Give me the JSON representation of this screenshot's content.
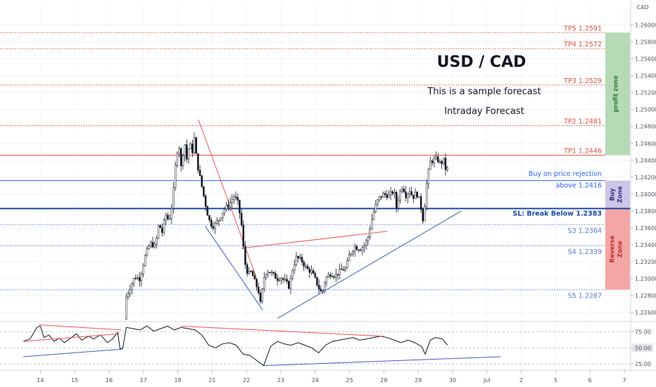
{
  "chart_data": {
    "type": "candlestick",
    "symbol": "USD / CAD",
    "subtitle": "This is a sample forecast",
    "caption": "Intraday Forecast",
    "price_axis": {
      "unit": "CAD",
      "ticks": [
        "1.26200",
        "1.26000",
        "1.25800",
        "1.25600",
        "1.25400",
        "1.25200",
        "1.25000",
        "1.24800",
        "1.24600",
        "1.24400",
        "1.24200",
        "1.24000",
        "1.23800",
        "1.23600",
        "1.23400",
        "1.23200",
        "1.23000",
        "1.22800",
        "1.22600"
      ],
      "range": [
        1.2251,
        1.2627
      ]
    },
    "time_axis": {
      "ticks": [
        "14",
        "15",
        "16",
        "17",
        "18",
        "21",
        "22",
        "23",
        "24",
        "25",
        "28",
        "29",
        "30",
        "Jul",
        "2",
        "5",
        "6",
        "7"
      ],
      "tick_positions": [
        0.5,
        1.5,
        2.5,
        3.5,
        4.5,
        5.5,
        6.5,
        7.5,
        8.5,
        9.5,
        10.5,
        11.5,
        12.5,
        13.5,
        14.5,
        15.5,
        16.5,
        17.5
      ],
      "data_end": 14.75
    },
    "levels": [
      {
        "label": "TP5 1.2591",
        "value": 1.2591,
        "color": "#e0503c",
        "style": "dotted"
      },
      {
        "label": "TP4 1.2572",
        "value": 1.2572,
        "color": "#e0503c",
        "style": "dotted"
      },
      {
        "label": "TP3 1.2529",
        "value": 1.2529,
        "color": "#e0503c",
        "style": "dotted"
      },
      {
        "label": "TP2 1.2481",
        "value": 1.2481,
        "color": "#e0503c",
        "style": "dotted"
      },
      {
        "label": "TP1 1.2446",
        "value": 1.2446,
        "color": "#e0503c",
        "style": "solid"
      },
      {
        "label": "above 1.2416",
        "value": 1.2416,
        "color": "#2962ff",
        "style": "solid"
      },
      {
        "label": "SL: Break Below 1.2383",
        "value": 1.2383,
        "color": "#1848a8",
        "style": "thick"
      },
      {
        "label": "S3 1.2364",
        "value": 1.2364,
        "color": "#5a7bd6",
        "style": "dotted"
      },
      {
        "label": "S4 1.2339",
        "value": 1.2339,
        "color": "#5a7bd6",
        "style": "dotted"
      },
      {
        "label": "S5 1.2287",
        "value": 1.2287,
        "color": "#5a7bd6",
        "style": "dotted"
      }
    ],
    "level_note": "Buy on price rejection",
    "zones": [
      {
        "label": "profit zone",
        "from": 1.2446,
        "to": 1.2591,
        "color": "#b5dab5",
        "text_color": "#2e7d32"
      },
      {
        "label": "Buy Zone",
        "from": 1.2383,
        "to": 1.2416,
        "color": "#cdc6e6",
        "text_color": "#3a2a86"
      },
      {
        "label": "Reverse Zone",
        "from": 1.2287,
        "to": 1.2383,
        "color": "#f4a6a6",
        "text_color": "#c62828"
      }
    ],
    "price_path": [
      [
        3.0,
        1.2252
      ],
      [
        3.05,
        1.2278
      ],
      [
        3.15,
        1.2288
      ],
      [
        3.3,
        1.2302
      ],
      [
        3.45,
        1.23
      ],
      [
        3.6,
        1.2326
      ],
      [
        3.75,
        1.2342
      ],
      [
        3.9,
        1.2338
      ],
      [
        4.0,
        1.2365
      ],
      [
        4.1,
        1.2355
      ],
      [
        4.2,
        1.2376
      ],
      [
        4.3,
        1.2368
      ],
      [
        4.4,
        1.239
      ],
      [
        4.5,
        1.244
      ],
      [
        4.58,
        1.2462
      ],
      [
        4.65,
        1.2432
      ],
      [
        4.75,
        1.2462
      ],
      [
        4.82,
        1.244
      ],
      [
        4.9,
        1.2462
      ],
      [
        4.97,
        1.2448
      ],
      [
        5.05,
        1.247
      ],
      [
        5.1,
        1.244
      ],
      [
        5.2,
        1.242
      ],
      [
        5.3,
        1.24
      ],
      [
        5.4,
        1.238
      ],
      [
        5.5,
        1.2365
      ],
      [
        5.6,
        1.2362
      ],
      [
        5.75,
        1.237
      ],
      [
        5.9,
        1.2382
      ],
      [
        6.05,
        1.2388
      ],
      [
        6.2,
        1.2398
      ],
      [
        6.3,
        1.239
      ],
      [
        6.4,
        1.2368
      ],
      [
        6.5,
        1.232
      ],
      [
        6.6,
        1.2305
      ],
      [
        6.7,
        1.2308
      ],
      [
        6.8,
        1.2296
      ],
      [
        6.9,
        1.2286
      ],
      [
        6.97,
        1.2268
      ],
      [
        7.05,
        1.23
      ],
      [
        7.15,
        1.231
      ],
      [
        7.3,
        1.2306
      ],
      [
        7.45,
        1.23
      ],
      [
        7.55,
        1.2302
      ],
      [
        7.7,
        1.2296
      ],
      [
        7.8,
        1.229
      ],
      [
        7.9,
        1.2312
      ],
      [
        8.0,
        1.2325
      ],
      [
        8.15,
        1.2322
      ],
      [
        8.3,
        1.2312
      ],
      [
        8.45,
        1.2308
      ],
      [
        8.55,
        1.23
      ],
      [
        8.65,
        1.229
      ],
      [
        8.75,
        1.2282
      ],
      [
        8.85,
        1.23
      ],
      [
        9.0,
        1.2306
      ],
      [
        9.15,
        1.2304
      ],
      [
        9.3,
        1.231
      ],
      [
        9.45,
        1.2312
      ],
      [
        9.55,
        1.2328
      ],
      [
        9.7,
        1.2338
      ],
      [
        9.85,
        1.2335
      ],
      [
        10.0,
        1.234
      ],
      [
        10.1,
        1.235
      ],
      [
        10.2,
        1.237
      ],
      [
        10.3,
        1.2385
      ],
      [
        10.4,
        1.2395
      ],
      [
        10.55,
        1.24
      ],
      [
        10.7,
        1.2398
      ],
      [
        10.85,
        1.2404
      ],
      [
        10.92,
        1.2384
      ],
      [
        11.0,
        1.24
      ],
      [
        11.1,
        1.241
      ],
      [
        11.2,
        1.2398
      ],
      [
        11.3,
        1.2405
      ],
      [
        11.4,
        1.2396
      ],
      [
        11.5,
        1.2402
      ],
      [
        11.6,
        1.2392
      ],
      [
        11.7,
        1.2368
      ],
      [
        11.8,
        1.2412
      ],
      [
        11.9,
        1.2438
      ],
      [
        12.0,
        1.244
      ],
      [
        12.1,
        1.2442
      ],
      [
        12.2,
        1.2436
      ],
      [
        12.3,
        1.244
      ],
      [
        12.35,
        1.243
      ]
    ],
    "trendlines": [
      {
        "color": "#ef5350",
        "points": [
          [
            5.1,
            1.2488
          ],
          [
            6.8,
            1.23
          ]
        ]
      },
      {
        "color": "#ef5350",
        "points": [
          [
            6.35,
            1.2336
          ],
          [
            10.6,
            1.2356
          ]
        ]
      },
      {
        "color": "#3c5fbf",
        "points": [
          [
            5.3,
            1.2362
          ],
          [
            6.97,
            1.2263
          ]
        ]
      },
      {
        "color": "#3c5fbf",
        "points": [
          [
            7.4,
            1.2253
          ],
          [
            12.75,
            1.238
          ]
        ]
      }
    ],
    "oscillator": {
      "ticks": [
        "75.00",
        "50.00",
        "25.00"
      ],
      "range": [
        15,
        90
      ],
      "current": "50.00",
      "path": [
        [
          0.0,
          60
        ],
        [
          0.2,
          64
        ],
        [
          0.4,
          82
        ],
        [
          0.5,
          84
        ],
        [
          0.6,
          66
        ],
        [
          0.75,
          70
        ],
        [
          0.9,
          60
        ],
        [
          1.05,
          65
        ],
        [
          1.2,
          58
        ],
        [
          1.4,
          66
        ],
        [
          1.55,
          72
        ],
        [
          1.7,
          62
        ],
        [
          1.9,
          68
        ],
        [
          2.05,
          64
        ],
        [
          2.25,
          70
        ],
        [
          2.45,
          58
        ],
        [
          2.6,
          64
        ],
        [
          2.75,
          74
        ],
        [
          2.82,
          48
        ],
        [
          2.9,
          50
        ],
        [
          3.0,
          82
        ],
        [
          3.2,
          80
        ],
        [
          3.4,
          78
        ],
        [
          3.6,
          84
        ],
        [
          3.8,
          76
        ],
        [
          4.0,
          80
        ],
        [
          4.2,
          84
        ],
        [
          4.4,
          78
        ],
        [
          4.6,
          82
        ],
        [
          4.8,
          80
        ],
        [
          5.0,
          78
        ],
        [
          5.2,
          70
        ],
        [
          5.4,
          54
        ],
        [
          5.6,
          50
        ],
        [
          5.8,
          56
        ],
        [
          6.0,
          58
        ],
        [
          6.2,
          54
        ],
        [
          6.4,
          40
        ],
        [
          6.6,
          38
        ],
        [
          6.8,
          30
        ],
        [
          7.0,
          22
        ],
        [
          7.2,
          52
        ],
        [
          7.4,
          60
        ],
        [
          7.6,
          56
        ],
        [
          7.8,
          54
        ],
        [
          8.0,
          58
        ],
        [
          8.2,
          54
        ],
        [
          8.4,
          50
        ],
        [
          8.6,
          42
        ],
        [
          8.8,
          54
        ],
        [
          9.0,
          60
        ],
        [
          9.2,
          62
        ],
        [
          9.4,
          64
        ],
        [
          9.6,
          66
        ],
        [
          9.8,
          62
        ],
        [
          10.0,
          64
        ],
        [
          10.2,
          66
        ],
        [
          10.4,
          68
        ],
        [
          10.6,
          66
        ],
        [
          10.8,
          62
        ],
        [
          11.0,
          58
        ],
        [
          11.2,
          62
        ],
        [
          11.4,
          58
        ],
        [
          11.6,
          52
        ],
        [
          11.7,
          40
        ],
        [
          11.85,
          62
        ],
        [
          12.0,
          66
        ],
        [
          12.2,
          64
        ],
        [
          12.35,
          54
        ]
      ],
      "trendlines": [
        {
          "color": "#ef5350",
          "points": [
            [
              0.0,
              60
            ],
            [
              2.8,
              72
            ]
          ]
        },
        {
          "color": "#ef5350",
          "points": [
            [
              0.45,
              86
            ],
            [
              2.85,
              78
            ]
          ]
        },
        {
          "color": "#ef5350",
          "points": [
            [
              4.6,
              84
            ],
            [
              10.5,
              68
            ]
          ]
        },
        {
          "color": "#3c5fbf",
          "points": [
            [
              0.0,
              36
            ],
            [
              2.9,
              48
            ]
          ]
        },
        {
          "color": "#3c5fbf",
          "points": [
            [
              7.0,
              22
            ],
            [
              13.9,
              36
            ]
          ]
        }
      ]
    }
  }
}
